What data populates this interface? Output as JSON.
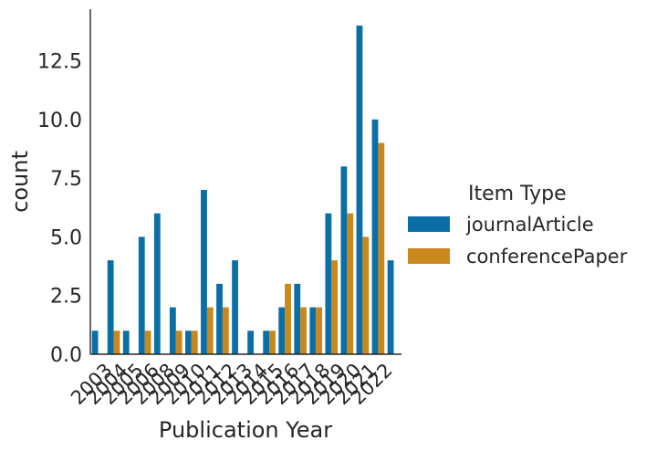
{
  "colors": {
    "journalArticle": "#0a6fa6",
    "conferencePaper": "#c9871c",
    "axis": "#262626"
  },
  "chart_data": {
    "type": "bar",
    "xlabel": "Publication Year",
    "ylabel": "count",
    "ylim": [
      0,
      14.7
    ],
    "yticks": [
      "0.0",
      "2.5",
      "5.0",
      "7.5",
      "10.0",
      "12.5"
    ],
    "grid": false,
    "legend": {
      "title": "Item Type",
      "placement": "right"
    },
    "categories": [
      "2003",
      "2004",
      "2005",
      "2006",
      "2008",
      "2009",
      "2010",
      "2011",
      "2012",
      "2013",
      "2014",
      "2015",
      "2016",
      "2017",
      "2018",
      "2019",
      "2020",
      "2021",
      "2022"
    ],
    "series": [
      {
        "name": "journalArticle",
        "values": [
          1,
          4,
          1,
          5,
          6,
          2,
          1,
          7,
          3,
          4,
          1,
          1,
          2,
          3,
          2,
          6,
          8,
          14,
          10
        ]
      },
      {
        "name": "conferencePaper",
        "values": [
          0,
          1,
          0,
          1,
          0,
          1,
          1,
          2,
          2,
          0,
          0,
          1,
          3,
          2,
          2,
          4,
          6,
          5,
          9
        ]
      }
    ],
    "extra_last_bar": {
      "series": "journalArticle",
      "value": 4
    }
  }
}
